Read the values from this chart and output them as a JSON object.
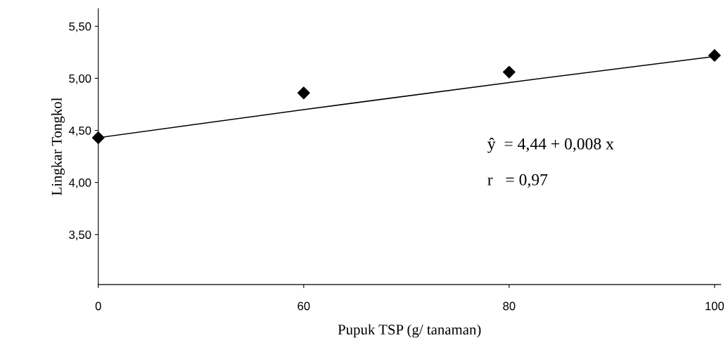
{
  "chart_data": {
    "type": "scatter",
    "xlabel": "Pupuk TSP (g/ tanaman)",
    "ylabel": "Lingkar Tongkol",
    "categories": [
      "0",
      "60",
      "80",
      "100"
    ],
    "series": [
      {
        "color": "#000000",
        "values": [
          4.43,
          4.86,
          5.06,
          5.22
        ],
        "marker": "diamond"
      },
      {
        "type": "line",
        "color": "#000000",
        "values": [
          4.43,
          4.7,
          4.96,
          5.21
        ],
        "marker": "none",
        "line_style": "solid"
      }
    ],
    "ylim": [
      3.02,
      5.67
    ],
    "yticks": [
      {
        "value": 3.5,
        "label": "3,50"
      },
      {
        "value": 4.0,
        "label": "4,00"
      },
      {
        "value": 4.5,
        "label": "4,50"
      },
      {
        "value": 5.0,
        "label": "5,00"
      },
      {
        "value": 5.5,
        "label": "5,50"
      }
    ],
    "annotations": [
      "ŷ  = 4,44 + 0,008 x",
      "r   = 0,97"
    ],
    "grid": false,
    "legend": false
  }
}
